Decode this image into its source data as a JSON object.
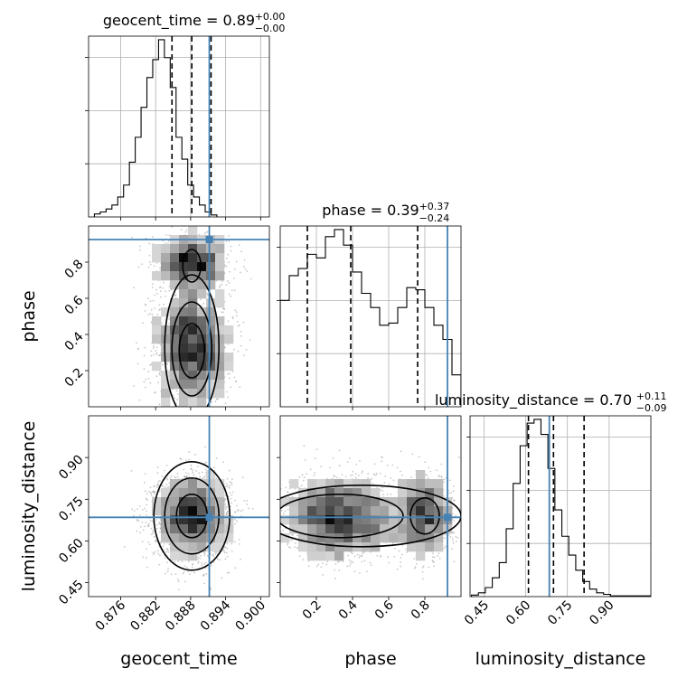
{
  "chart_data": {
    "type": "corner",
    "parameters": [
      {
        "name": "geocent_time",
        "label": "geocent_time",
        "title": "geocent_time = 0.89",
        "median": 0.8882,
        "err_plus": "+0.00",
        "err_minus": "−0.00",
        "quantiles": [
          0.8848,
          0.8882,
          0.8915
        ],
        "truth": 0.8912,
        "range": [
          0.8705,
          0.9015
        ],
        "ticks": [
          0.876,
          0.882,
          0.888,
          0.894,
          0.9
        ],
        "tick_labels": [
          "0.876",
          "0.882",
          "0.888",
          "0.894",
          "0.900"
        ],
        "hist": {
          "bin_start": 0.8715,
          "bin_width": 0.001,
          "counts": [
            3,
            5,
            8,
            12,
            20,
            32,
            55,
            80,
            110,
            140,
            158,
            178,
            160,
            130,
            80,
            58,
            32,
            20,
            12,
            5,
            2
          ]
        }
      },
      {
        "name": "phase",
        "label": "phase",
        "title": "phase = 0.39",
        "median": 0.39,
        "err_plus": "+0.37",
        "err_minus": "−0.24",
        "quantiles": [
          0.15,
          0.39,
          0.76
        ],
        "truth": 0.925,
        "range": [
          0.0,
          1.0
        ],
        "ticks": [
          0.2,
          0.4,
          0.6,
          0.8
        ],
        "tick_labels": [
          "0.2",
          "0.4",
          "0.6",
          "0.8"
        ],
        "hist": {
          "bin_start": 0.0,
          "bin_width": 0.05,
          "counts": [
            150,
            185,
            195,
            215,
            210,
            240,
            250,
            228,
            190,
            160,
            140,
            115,
            118,
            140,
            168,
            165,
            140,
            115,
            95,
            45
          ]
        }
      },
      {
        "name": "luminosity_distance",
        "label": "luminosity_distance",
        "title": "luminosity_distance = 0.70",
        "median": 0.7,
        "err_plus": "+0.11",
        "err_minus": "−0.09",
        "quantiles": [
          0.61,
          0.7,
          0.81
        ],
        "truth": 0.685,
        "range": [
          0.4,
          1.05
        ],
        "ticks": [
          0.45,
          0.6,
          0.75,
          0.9
        ],
        "tick_labels": [
          "0.45",
          "0.60",
          "0.75",
          "0.90"
        ],
        "hist": {
          "bin_start": 0.405,
          "bin_width": 0.025,
          "counts": [
            2,
            5,
            12,
            25,
            45,
            90,
            150,
            200,
            230,
            235,
            215,
            170,
            115,
            80,
            55,
            35,
            20,
            10,
            5,
            3,
            1,
            1,
            1,
            1,
            1,
            1
          ]
        }
      }
    ],
    "truth_color": "#4682b4",
    "grid": true
  }
}
